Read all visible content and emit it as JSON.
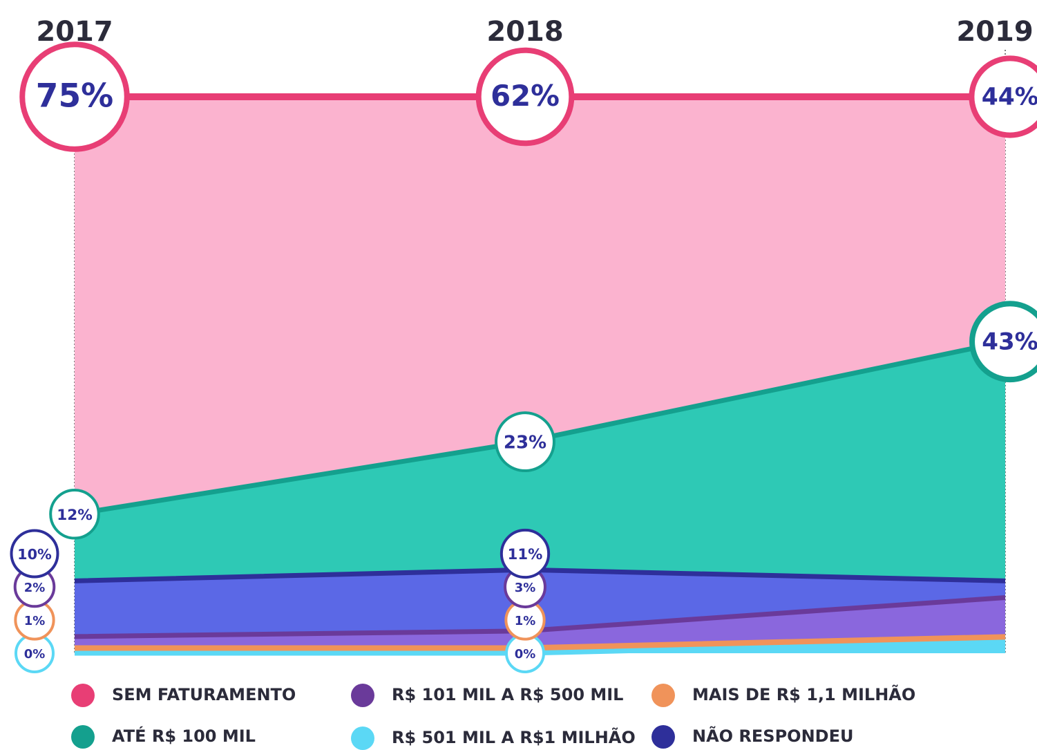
{
  "chart_data": {
    "type": "stacked_area",
    "categories": [
      "2017",
      "2018",
      "2019"
    ],
    "ylim": [
      0,
      100
    ],
    "series": [
      {
        "name": "R$ 501 MIL A R$1 MILHÃO",
        "color": "#5bd8f5",
        "line": "#5bd8f5",
        "values": [
          0,
          0,
          2
        ],
        "value_labels": [
          "0%",
          "0%",
          null
        ]
      },
      {
        "name": "MAIS DE R$ 1,1 MILHÃO",
        "color": "#f0935a",
        "line": "#f0935a",
        "values": [
          1,
          1,
          1
        ],
        "value_labels": [
          "1%",
          "1%",
          null
        ]
      },
      {
        "name": "R$ 101 MIL A R$ 500 MIL",
        "color": "#8a67dd",
        "line": "#6a3a9a",
        "values": [
          2,
          3,
          7
        ],
        "value_labels": [
          "2%",
          "3%",
          null
        ]
      },
      {
        "name": "NÃO RESPONDEU",
        "color": "#5b68e6",
        "line": "#2e2f9a",
        "values": [
          10,
          11,
          3
        ],
        "value_labels": [
          "10%",
          "11%",
          null
        ]
      },
      {
        "name": "ATÉ R$ 100 MIL",
        "color": "#2ec9b5",
        "line": "#14a08e",
        "values": [
          12,
          23,
          43
        ],
        "value_labels": [
          "12%",
          "23%",
          "43%"
        ]
      },
      {
        "name": "SEM FATURAMENTO",
        "color": "#fbb3cf",
        "line": "#e83e75",
        "values": [
          75,
          62,
          44
        ],
        "value_labels": [
          "75%",
          "62%",
          "44%"
        ]
      }
    ]
  }
}
